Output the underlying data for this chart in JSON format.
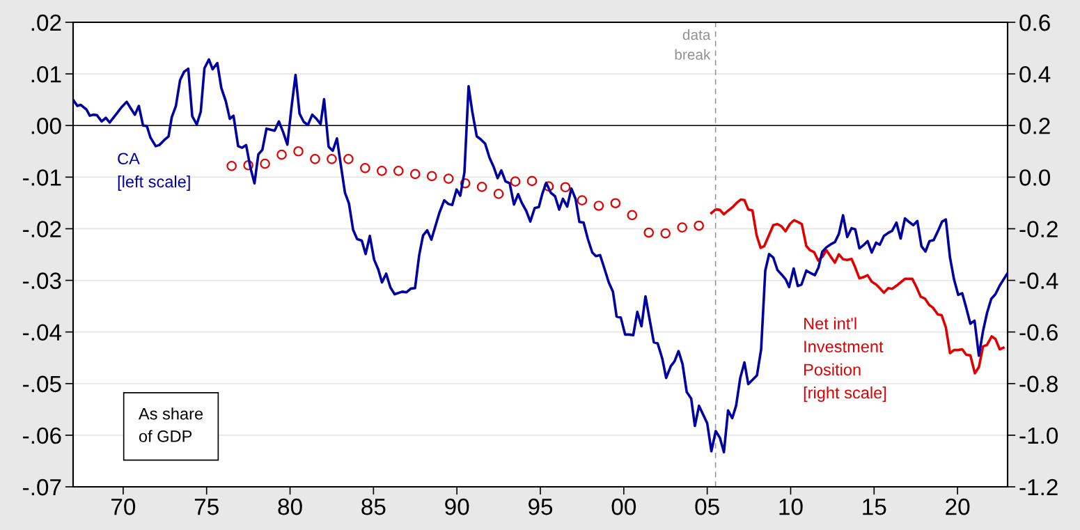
{
  "chart_data": {
    "type": "line",
    "xlim": [
      1967,
      2023
    ],
    "xticks": [
      {
        "value": 1970,
        "label": "70"
      },
      {
        "value": 1975,
        "label": "75"
      },
      {
        "value": 1980,
        "label": "80"
      },
      {
        "value": 1985,
        "label": "85"
      },
      {
        "value": 1990,
        "label": "90"
      },
      {
        "value": 1995,
        "label": "95"
      },
      {
        "value": 2000,
        "label": "00"
      },
      {
        "value": 2005,
        "label": "05"
      },
      {
        "value": 2010,
        "label": "10"
      },
      {
        "value": 2015,
        "label": "15"
      },
      {
        "value": 2020,
        "label": "20"
      }
    ],
    "ylim": [
      -0.07,
      0.02
    ],
    "yticks": [
      {
        "value": 0.02,
        "label": ".02"
      },
      {
        "value": 0.01,
        "label": ".01"
      },
      {
        "value": 0.0,
        "label": ".00"
      },
      {
        "value": -0.01,
        "label": "-.01"
      },
      {
        "value": -0.02,
        "label": "-.02"
      },
      {
        "value": -0.03,
        "label": "-.03"
      },
      {
        "value": -0.04,
        "label": "-.04"
      },
      {
        "value": -0.05,
        "label": "-.05"
      },
      {
        "value": -0.06,
        "label": "-.06"
      },
      {
        "value": -0.07,
        "label": "-.07"
      }
    ],
    "y2lim": [
      -1.2,
      0.6
    ],
    "y2ticks": [
      {
        "value": 0.6,
        "label": "0.6"
      },
      {
        "value": 0.4,
        "label": "0.4"
      },
      {
        "value": 0.2,
        "label": "0.2"
      },
      {
        "value": 0.0,
        "label": "0.0"
      },
      {
        "value": -0.2,
        "label": "-0.2"
      },
      {
        "value": -0.4,
        "label": "-0.4"
      },
      {
        "value": -0.6,
        "label": "-0.6"
      },
      {
        "value": -0.8,
        "label": "-0.8"
      },
      {
        "value": -1.0,
        "label": "-1.0"
      },
      {
        "value": -1.2,
        "label": "-1.2"
      }
    ],
    "grid": true,
    "legend": false,
    "ref_lines": [
      {
        "axis": "y",
        "value": 0,
        "color": "#000000"
      },
      {
        "axis": "x",
        "value": 2005.5,
        "label": "data\nbreak",
        "color": "#909090",
        "line_style": "dashed"
      }
    ],
    "annotations": [
      "As share\nof GDP"
    ],
    "series": [
      {
        "name": "CA\n[left scale]",
        "color": "#0000a0",
        "x": [
          1967.0,
          1967.25,
          1967.46,
          1967.8,
          1968.0,
          1968.2,
          1968.43,
          1968.71,
          1968.96,
          1969.19,
          1969.61,
          1969.89,
          1970.21,
          1970.48,
          1970.7,
          1970.94,
          1971.19,
          1971.42,
          1971.63,
          1971.95,
          1972.16,
          1972.47,
          1972.72,
          1972.91,
          1973.16,
          1973.41,
          1973.65,
          1973.9,
          1974.14,
          1974.41,
          1974.65,
          1974.87,
          1975.14,
          1975.36,
          1975.64,
          1975.88,
          1976.15,
          1976.39,
          1976.61,
          1976.89,
          1977.13,
          1977.37,
          1977.62,
          1977.87,
          1978.1,
          1978.34,
          1978.59,
          1978.83,
          1979.08,
          1979.33,
          1979.59,
          1979.84,
          1980.09,
          1980.33,
          1980.57,
          1980.82,
          1981.07,
          1981.33,
          1981.58,
          1981.83,
          1982.04,
          1982.31,
          1982.56,
          1982.81,
          1983.04,
          1983.29,
          1983.53,
          1983.78,
          1984.02,
          1984.3,
          1984.53,
          1984.78,
          1985.04,
          1985.29,
          1985.51,
          1985.76,
          1986.02,
          1986.27,
          1986.71,
          1986.98,
          1987.24,
          1987.49,
          1987.74,
          1987.97,
          1988.22,
          1988.47,
          1988.95,
          1989.24,
          1989.49,
          1989.72,
          1989.98,
          1990.2,
          1990.45,
          1990.7,
          1990.93,
          1991.19,
          1991.44,
          1991.69,
          1991.95,
          1992.2,
          1992.44,
          1992.66,
          1992.91,
          1993.16,
          1993.42,
          1993.67,
          1993.89,
          1994.15,
          1994.4,
          1994.66,
          1994.91,
          1995.13,
          1995.35,
          1995.62,
          1995.88,
          1996.13,
          1996.35,
          1996.61,
          1996.86,
          1997.11,
          1997.34,
          1997.59,
          1997.84,
          1998.11,
          1998.33,
          1998.58,
          1998.84,
          1999.1,
          1999.35,
          1999.57,
          1999.82,
          2000.08,
          2000.33,
          2000.57,
          2000.81,
          2001.06,
          2001.3,
          2001.55,
          2001.8,
          2002.03,
          2002.31,
          2002.54,
          2002.82,
          2003.04,
          2003.28,
          2003.52,
          2003.77,
          2004.04,
          2004.26,
          2004.51,
          2004.77,
          2005.0,
          2005.25,
          2005.51,
          2005.76,
          2006.0,
          2006.25,
          2006.5,
          2006.73,
          2006.98,
          2007.23,
          2007.46,
          2007.98,
          2008.23,
          2008.48,
          2008.71,
          2008.96,
          2009.21,
          2009.47,
          2009.7,
          2009.91,
          2010.18,
          2010.43,
          2010.65,
          2010.94,
          2011.2,
          2011.45,
          2011.67,
          2011.89,
          2012.14,
          2012.41,
          2012.65,
          2012.89,
          2013.14,
          2013.39,
          2013.65,
          2013.87,
          2014.12,
          2014.36,
          2014.61,
          2014.86,
          2015.12,
          2015.34,
          2015.59,
          2015.85,
          2016.08,
          2016.34,
          2016.59,
          2016.85,
          2017.1,
          2017.35,
          2017.59,
          2017.84,
          2018.08,
          2018.32,
          2018.57,
          2018.82,
          2019.08,
          2019.3,
          2019.55,
          2019.79,
          2020.04,
          2020.28,
          2020.52,
          2020.77,
          2021.02,
          2021.28,
          2021.53,
          2021.77,
          2022.02,
          2022.27,
          2022.53,
          2023.0
        ],
        "values": [
          0.005,
          0.0038,
          0.004,
          0.0031,
          0.0019,
          0.0021,
          0.002,
          0.0008,
          0.0015,
          0.0006,
          0.0023,
          0.0035,
          0.0046,
          0.0032,
          0.0021,
          0.0038,
          0.0,
          -0.0001,
          -0.0023,
          -0.004,
          -0.0038,
          -0.0028,
          -0.0021,
          0.0016,
          0.0038,
          0.0088,
          0.0104,
          0.011,
          0.0018,
          0.0002,
          0.0027,
          0.0111,
          0.0128,
          0.0109,
          0.0121,
          0.0073,
          0.0047,
          0.0013,
          0.0019,
          -0.004,
          -0.0043,
          -0.0038,
          -0.0081,
          -0.0112,
          -0.0056,
          -0.0047,
          -0.0006,
          -0.0008,
          -0.001,
          0.0008,
          -0.0013,
          -0.0037,
          0.0036,
          0.0098,
          0.0023,
          0.0007,
          0.0001,
          0.0021,
          0.0013,
          0.0003,
          0.0051,
          -0.0041,
          -0.0049,
          -0.0025,
          -0.0076,
          -0.013,
          -0.0151,
          -0.0202,
          -0.022,
          -0.0223,
          -0.0249,
          -0.0214,
          -0.026,
          -0.0279,
          -0.0304,
          -0.0287,
          -0.0314,
          -0.0327,
          -0.0322,
          -0.0323,
          -0.0316,
          -0.0315,
          -0.0251,
          -0.0213,
          -0.0203,
          -0.0221,
          -0.0169,
          -0.0145,
          -0.0152,
          -0.0154,
          -0.0124,
          -0.0136,
          -0.0091,
          0.0076,
          0.0025,
          -0.0021,
          -0.0027,
          -0.0035,
          -0.0062,
          -0.008,
          -0.0102,
          -0.0087,
          -0.0108,
          -0.0112,
          -0.0153,
          -0.0133,
          -0.015,
          -0.0165,
          -0.0186,
          -0.016,
          -0.0158,
          -0.0131,
          -0.0111,
          -0.013,
          -0.0137,
          -0.0163,
          -0.0142,
          -0.0157,
          -0.0122,
          -0.0142,
          -0.0187,
          -0.0188,
          -0.0219,
          -0.0246,
          -0.0253,
          -0.0251,
          -0.0277,
          -0.0304,
          -0.0322,
          -0.037,
          -0.0372,
          -0.0405,
          -0.0405,
          -0.0406,
          -0.0361,
          -0.0389,
          -0.0331,
          -0.0376,
          -0.042,
          -0.0422,
          -0.0452,
          -0.0489,
          -0.0466,
          -0.0457,
          -0.0437,
          -0.0462,
          -0.0516,
          -0.0529,
          -0.0582,
          -0.0543,
          -0.0561,
          -0.0577,
          -0.0631,
          -0.0592,
          -0.0605,
          -0.0633,
          -0.0552,
          -0.0567,
          -0.0543,
          -0.0489,
          -0.0459,
          -0.0501,
          -0.0484,
          -0.0434,
          -0.0281,
          -0.0249,
          -0.0256,
          -0.028,
          -0.0289,
          -0.0298,
          -0.0313,
          -0.0277,
          -0.0311,
          -0.0308,
          -0.0281,
          -0.0286,
          -0.029,
          -0.0275,
          -0.0245,
          -0.0236,
          -0.023,
          -0.0226,
          -0.021,
          -0.0174,
          -0.0216,
          -0.0199,
          -0.0201,
          -0.0238,
          -0.0232,
          -0.0224,
          -0.0246,
          -0.0227,
          -0.0231,
          -0.0214,
          -0.0208,
          -0.0204,
          -0.0188,
          -0.0219,
          -0.018,
          -0.0187,
          -0.0193,
          -0.0185,
          -0.0234,
          -0.0244,
          -0.0224,
          -0.0222,
          -0.0205,
          -0.0186,
          -0.0182,
          -0.0256,
          -0.0298,
          -0.0328,
          -0.0325,
          -0.0353,
          -0.0384,
          -0.0378,
          -0.0446,
          -0.0398,
          -0.0363,
          -0.0336,
          -0.0327,
          -0.031,
          -0.0286
        ]
      },
      {
        "type": "scatter",
        "axis": "y2",
        "color": "#e00000",
        "marker": "circle",
        "x": [
          1976.5,
          1977.5,
          1978.5,
          1979.5,
          1980.5,
          1981.5,
          1982.5,
          1983.5,
          1984.5,
          1985.5,
          1986.5,
          1987.5,
          1988.5,
          1989.5,
          1990.5,
          1991.5,
          1992.5,
          1993.5,
          1994.5,
          1995.5,
          1996.5,
          1997.5,
          1998.5,
          1999.5,
          2000.5,
          2001.5,
          2002.5,
          2003.5,
          2004.5
        ],
        "values": [
          0.043,
          0.046,
          0.052,
          0.087,
          0.1,
          0.07,
          0.07,
          0.07,
          0.035,
          0.024,
          0.024,
          0.012,
          0.004,
          -0.006,
          -0.024,
          -0.038,
          -0.065,
          -0.017,
          -0.015,
          -0.036,
          -0.039,
          -0.09,
          -0.111,
          -0.101,
          -0.147,
          -0.215,
          -0.218,
          -0.195,
          -0.188
        ]
      },
      {
        "name": "Net int'l\nInvestment\nPosition\n[right scale]",
        "type": "line",
        "axis": "y2",
        "color": "#e00000",
        "x": [
          2005.25,
          2005.51,
          2005.76,
          2006.0,
          2006.25,
          2006.51,
          2006.76,
          2007.01,
          2007.23,
          2007.46,
          2007.71,
          2007.96,
          2008.2,
          2008.42,
          2008.7,
          2008.96,
          2009.21,
          2009.44,
          2009.69,
          2009.95,
          2010.2,
          2010.45,
          2010.67,
          2010.94,
          2011.16,
          2011.41,
          2011.65,
          2011.92,
          2012.14,
          2012.41,
          2012.65,
          2012.89,
          2013.14,
          2013.39,
          2013.65,
          2013.87,
          2014.12,
          2014.36,
          2014.61,
          2014.86,
          2015.12,
          2015.34,
          2015.59,
          2015.85,
          2016.08,
          2016.34,
          2016.59,
          2016.85,
          2017.29,
          2017.54,
          2017.79,
          2018.05,
          2018.3,
          2018.53,
          2018.82,
          2019.05,
          2019.3,
          2019.55,
          2019.79,
          2020.04,
          2020.28,
          2020.52,
          2020.77,
          2021.04,
          2021.28,
          2021.53,
          2021.77,
          2022.05,
          2022.27,
          2022.53,
          2022.75
        ],
        "values": [
          -0.139,
          -0.125,
          -0.127,
          -0.144,
          -0.13,
          -0.117,
          -0.1,
          -0.087,
          -0.089,
          -0.125,
          -0.129,
          -0.225,
          -0.274,
          -0.267,
          -0.225,
          -0.186,
          -0.182,
          -0.19,
          -0.21,
          -0.182,
          -0.167,
          -0.174,
          -0.182,
          -0.267,
          -0.283,
          -0.291,
          -0.323,
          -0.307,
          -0.283,
          -0.309,
          -0.331,
          -0.299,
          -0.318,
          -0.321,
          -0.317,
          -0.35,
          -0.392,
          -0.388,
          -0.38,
          -0.405,
          -0.416,
          -0.43,
          -0.448,
          -0.43,
          -0.433,
          -0.421,
          -0.408,
          -0.394,
          -0.394,
          -0.426,
          -0.463,
          -0.471,
          -0.495,
          -0.506,
          -0.532,
          -0.535,
          -0.582,
          -0.682,
          -0.67,
          -0.67,
          -0.667,
          -0.688,
          -0.691,
          -0.76,
          -0.736,
          -0.656,
          -0.65,
          -0.617,
          -0.627,
          -0.667,
          -0.661
        ]
      }
    ]
  }
}
